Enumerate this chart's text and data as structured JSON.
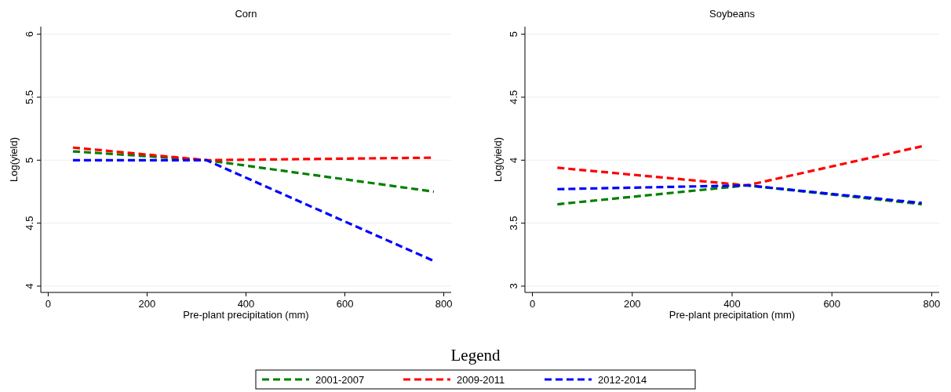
{
  "chart_data": [
    {
      "type": "line",
      "title": "Corn",
      "xlabel": "Pre-plant precipitation (mm)",
      "ylabel": "Log(yield)",
      "xlim": [
        -15,
        815
      ],
      "xticks": [
        0,
        200,
        400,
        600,
        800
      ],
      "ylim": [
        3.95,
        6.06
      ],
      "yticks": [
        4,
        4.5,
        5,
        5.5,
        6
      ],
      "grid": "y",
      "line_style": "dashed",
      "legend": "bottom",
      "legend_title": "Legend",
      "x": [
        50,
        320,
        780
      ],
      "series": [
        {
          "name": "2001-2007",
          "color": "#008000",
          "values": [
            5.07,
            5.0,
            4.75
          ]
        },
        {
          "name": "2009-2011",
          "color": "#ff0000",
          "values": [
            5.1,
            5.0,
            5.02
          ]
        },
        {
          "name": "2012-2014",
          "color": "#0000ff",
          "values": [
            5.0,
            5.0,
            4.2
          ]
        }
      ]
    },
    {
      "type": "line",
      "title": "Soybeans",
      "xlabel": "Pre-plant precipitation (mm)",
      "ylabel": "Log(yield)",
      "xlim": [
        -15,
        815
      ],
      "xticks": [
        0,
        200,
        400,
        600,
        800
      ],
      "ylim": [
        2.95,
        5.06
      ],
      "yticks": [
        3,
        3.5,
        4,
        4.5,
        5
      ],
      "grid": "y",
      "line_style": "dashed",
      "x": [
        50,
        430,
        780
      ],
      "series": [
        {
          "color": "#008000",
          "values": [
            3.65,
            3.8,
            3.65
          ]
        },
        {
          "color": "#ff0000",
          "values": [
            3.94,
            3.8,
            4.11
          ]
        },
        {
          "color": "#0000ff",
          "values": [
            3.77,
            3.8,
            3.66
          ]
        }
      ]
    }
  ]
}
